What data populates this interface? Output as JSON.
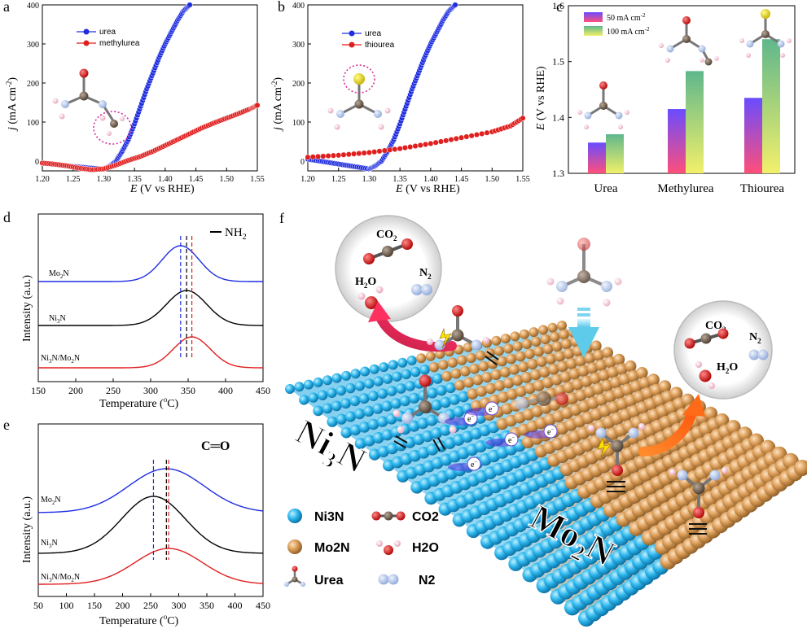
{
  "panels": {
    "a": {
      "label": "a",
      "xlabel_italic": "E",
      "xlabel_rest": " (V vs RHE)",
      "ylabel_italic": "j",
      "ylabel_rest": " (mA cm",
      "ylabel_sup": "-2",
      "ylabel_end": ")",
      "xticks": [
        "1.20",
        "1.25",
        "1.30",
        "1.35",
        "1.40",
        "1.45",
        "1.50",
        "1.55"
      ],
      "yticks": [
        "0",
        "100",
        "200",
        "300",
        "400"
      ],
      "legend": [
        "urea",
        "methylurea"
      ]
    },
    "b": {
      "label": "b",
      "xlabel_italic": "E",
      "xlabel_rest": " (V vs RHE)",
      "ylabel_italic": "j",
      "ylabel_rest": " (mA cm",
      "ylabel_sup": "-2",
      "ylabel_end": ")",
      "xticks": [
        "1.20",
        "1.25",
        "1.30",
        "1.35",
        "1.40",
        "1.45",
        "1.50",
        "1.55"
      ],
      "yticks": [
        "0",
        "100",
        "200",
        "300",
        "400"
      ],
      "legend": [
        "urea",
        "thiourea"
      ]
    },
    "c": {
      "label": "c",
      "ylabel_italic": "E",
      "ylabel_rest": " (V vs RHE)",
      "yticks": [
        "1.3",
        "1.4",
        "1.5",
        "1.6"
      ],
      "categories": [
        "Urea",
        "Methylurea",
        "Thiourea"
      ],
      "legend_1": "50 mA cm",
      "legend_1_sup": "-2",
      "legend_2": "100 mA cm",
      "legend_2_sup": "-2"
    },
    "d": {
      "label": "d",
      "group_label": "NH",
      "group_sub": "2",
      "xlabel": "Temperature (",
      "xlabel_sup": "o",
      "xlabel_end": "C)",
      "ylabel": "Intensity (a.u.)",
      "xticks": [
        "150",
        "200",
        "250",
        "300",
        "350",
        "400",
        "450"
      ],
      "curves": [
        {
          "a": "Mo",
          "b": "2",
          "c": "N"
        },
        {
          "a": "Ni",
          "b": "3",
          "c": "N"
        },
        {
          "a": "Ni",
          "b": "3",
          "c": "N/Mo",
          "d": "2",
          "e": "N"
        }
      ]
    },
    "e": {
      "label": "e",
      "group_label": "C═O",
      "xlabel": "Temperature (",
      "xlabel_sup": "o",
      "xlabel_end": "C)",
      "ylabel": "Intensity (a.u.)",
      "xticks": [
        "50",
        "100",
        "150",
        "200",
        "250",
        "300",
        "350",
        "400",
        "450"
      ],
      "curves": [
        {
          "a": "Mo",
          "b": "2",
          "c": "N"
        },
        {
          "a": "Ni",
          "b": "3",
          "c": "N"
        },
        {
          "a": "Ni",
          "b": "3",
          "c": "N/Mo",
          "d": "2",
          "e": "N"
        }
      ]
    },
    "f": {
      "label": "f",
      "bubble_co2": "CO",
      "bubble_co2_sub": "2",
      "bubble_h2o": "H",
      "bubble_h2o_sub": "2",
      "bubble_h2o_end": "O",
      "bubble_n2": "N",
      "bubble_n2_sub": "2",
      "surface_ni": "Ni",
      "surface_ni_sub": "3",
      "surface_ni_end": "N",
      "surface_mo": "Mo",
      "surface_mo_sub": "2",
      "surface_mo_end": "N",
      "electron": "e",
      "electron_sup": "−",
      "legend": {
        "ni3n": "Ni3N",
        "mo2n": "Mo2N",
        "urea": "Urea",
        "co2": "CO2",
        "h2o": "H2O",
        "n2": "N2"
      }
    }
  },
  "colors": {
    "blue": "#1f2de0",
    "red": "#e01f1f",
    "black": "#000000",
    "ni_sphere": "#29b4ea",
    "mo_sphere": "#d89a55",
    "pink": "#d8367a"
  },
  "chart_data": [
    {
      "panel": "a",
      "type": "scatter",
      "xlim": [
        1.2,
        1.55
      ],
      "ylim": [
        -25,
        400
      ],
      "series": [
        {
          "name": "urea",
          "color": "#1f2de0",
          "x": [
            1.2,
            1.22,
            1.24,
            1.26,
            1.28,
            1.3,
            1.31,
            1.32,
            1.33,
            1.34,
            1.35,
            1.36,
            1.37,
            1.38,
            1.39,
            1.4,
            1.41,
            1.42,
            1.43,
            1.44
          ],
          "y": [
            -5,
            -8,
            -12,
            -15,
            -18,
            -20,
            -12,
            0,
            25,
            55,
            95,
            140,
            185,
            225,
            265,
            300,
            330,
            360,
            385,
            400
          ]
        },
        {
          "name": "methylurea",
          "color": "#e01f1f",
          "x": [
            1.2,
            1.22,
            1.24,
            1.26,
            1.28,
            1.3,
            1.32,
            1.34,
            1.36,
            1.38,
            1.4,
            1.42,
            1.44,
            1.46,
            1.48,
            1.5,
            1.52,
            1.54,
            1.55
          ],
          "y": [
            -5,
            -8,
            -12,
            -18,
            -22,
            -20,
            -10,
            2,
            12,
            25,
            40,
            55,
            70,
            85,
            98,
            110,
            122,
            135,
            143
          ]
        }
      ]
    },
    {
      "panel": "b",
      "type": "scatter",
      "xlim": [
        1.2,
        1.55
      ],
      "ylim": [
        -25,
        400
      ],
      "series": [
        {
          "name": "urea",
          "color": "#1f2de0",
          "x": [
            1.2,
            1.22,
            1.24,
            1.26,
            1.28,
            1.3,
            1.31,
            1.32,
            1.33,
            1.34,
            1.35,
            1.36,
            1.37,
            1.38,
            1.39,
            1.4,
            1.41,
            1.42,
            1.43,
            1.44
          ],
          "y": [
            5,
            0,
            -5,
            -10,
            -15,
            -20,
            -12,
            0,
            25,
            55,
            95,
            140,
            185,
            225,
            265,
            300,
            330,
            360,
            385,
            400
          ]
        },
        {
          "name": "thiourea",
          "color": "#e01f1f",
          "x": [
            1.2,
            1.25,
            1.3,
            1.35,
            1.4,
            1.45,
            1.5,
            1.53,
            1.55
          ],
          "y": [
            10,
            15,
            22,
            32,
            45,
            60,
            75,
            90,
            110
          ]
        }
      ]
    },
    {
      "panel": "c",
      "type": "bar",
      "categories": [
        "Urea",
        "Methylurea",
        "Thiourea"
      ],
      "ylim": [
        1.3,
        1.6
      ],
      "series": [
        {
          "name": "50 mA cm-2",
          "values": [
            1.355,
            1.415,
            1.435
          ]
        },
        {
          "name": "100 mA cm-2",
          "values": [
            1.37,
            1.483,
            1.54
          ]
        }
      ]
    },
    {
      "panel": "d",
      "type": "line",
      "xlim": [
        150,
        450
      ],
      "series": [
        {
          "name": "Mo2N",
          "color": "#1f2de0",
          "peak": 340,
          "width": 35
        },
        {
          "name": "Ni3N",
          "color": "#000000",
          "peak": 348,
          "width": 38
        },
        {
          "name": "Ni3N/Mo2N",
          "color": "#e01f1f",
          "peak": 355,
          "width": 35
        }
      ],
      "markers": [
        340,
        348,
        355
      ]
    },
    {
      "panel": "e",
      "type": "line",
      "xlim": [
        50,
        450
      ],
      "series": [
        {
          "name": "Mo2N",
          "color": "#1f2de0",
          "peak": 278,
          "width": 95
        },
        {
          "name": "Ni3N",
          "color": "#000000",
          "peak": 255,
          "width": 80
        },
        {
          "name": "Ni3N/Mo2N",
          "color": "#e01f1f",
          "peak": 282,
          "width": 85
        }
      ],
      "markers": [
        255,
        278,
        282
      ]
    }
  ]
}
